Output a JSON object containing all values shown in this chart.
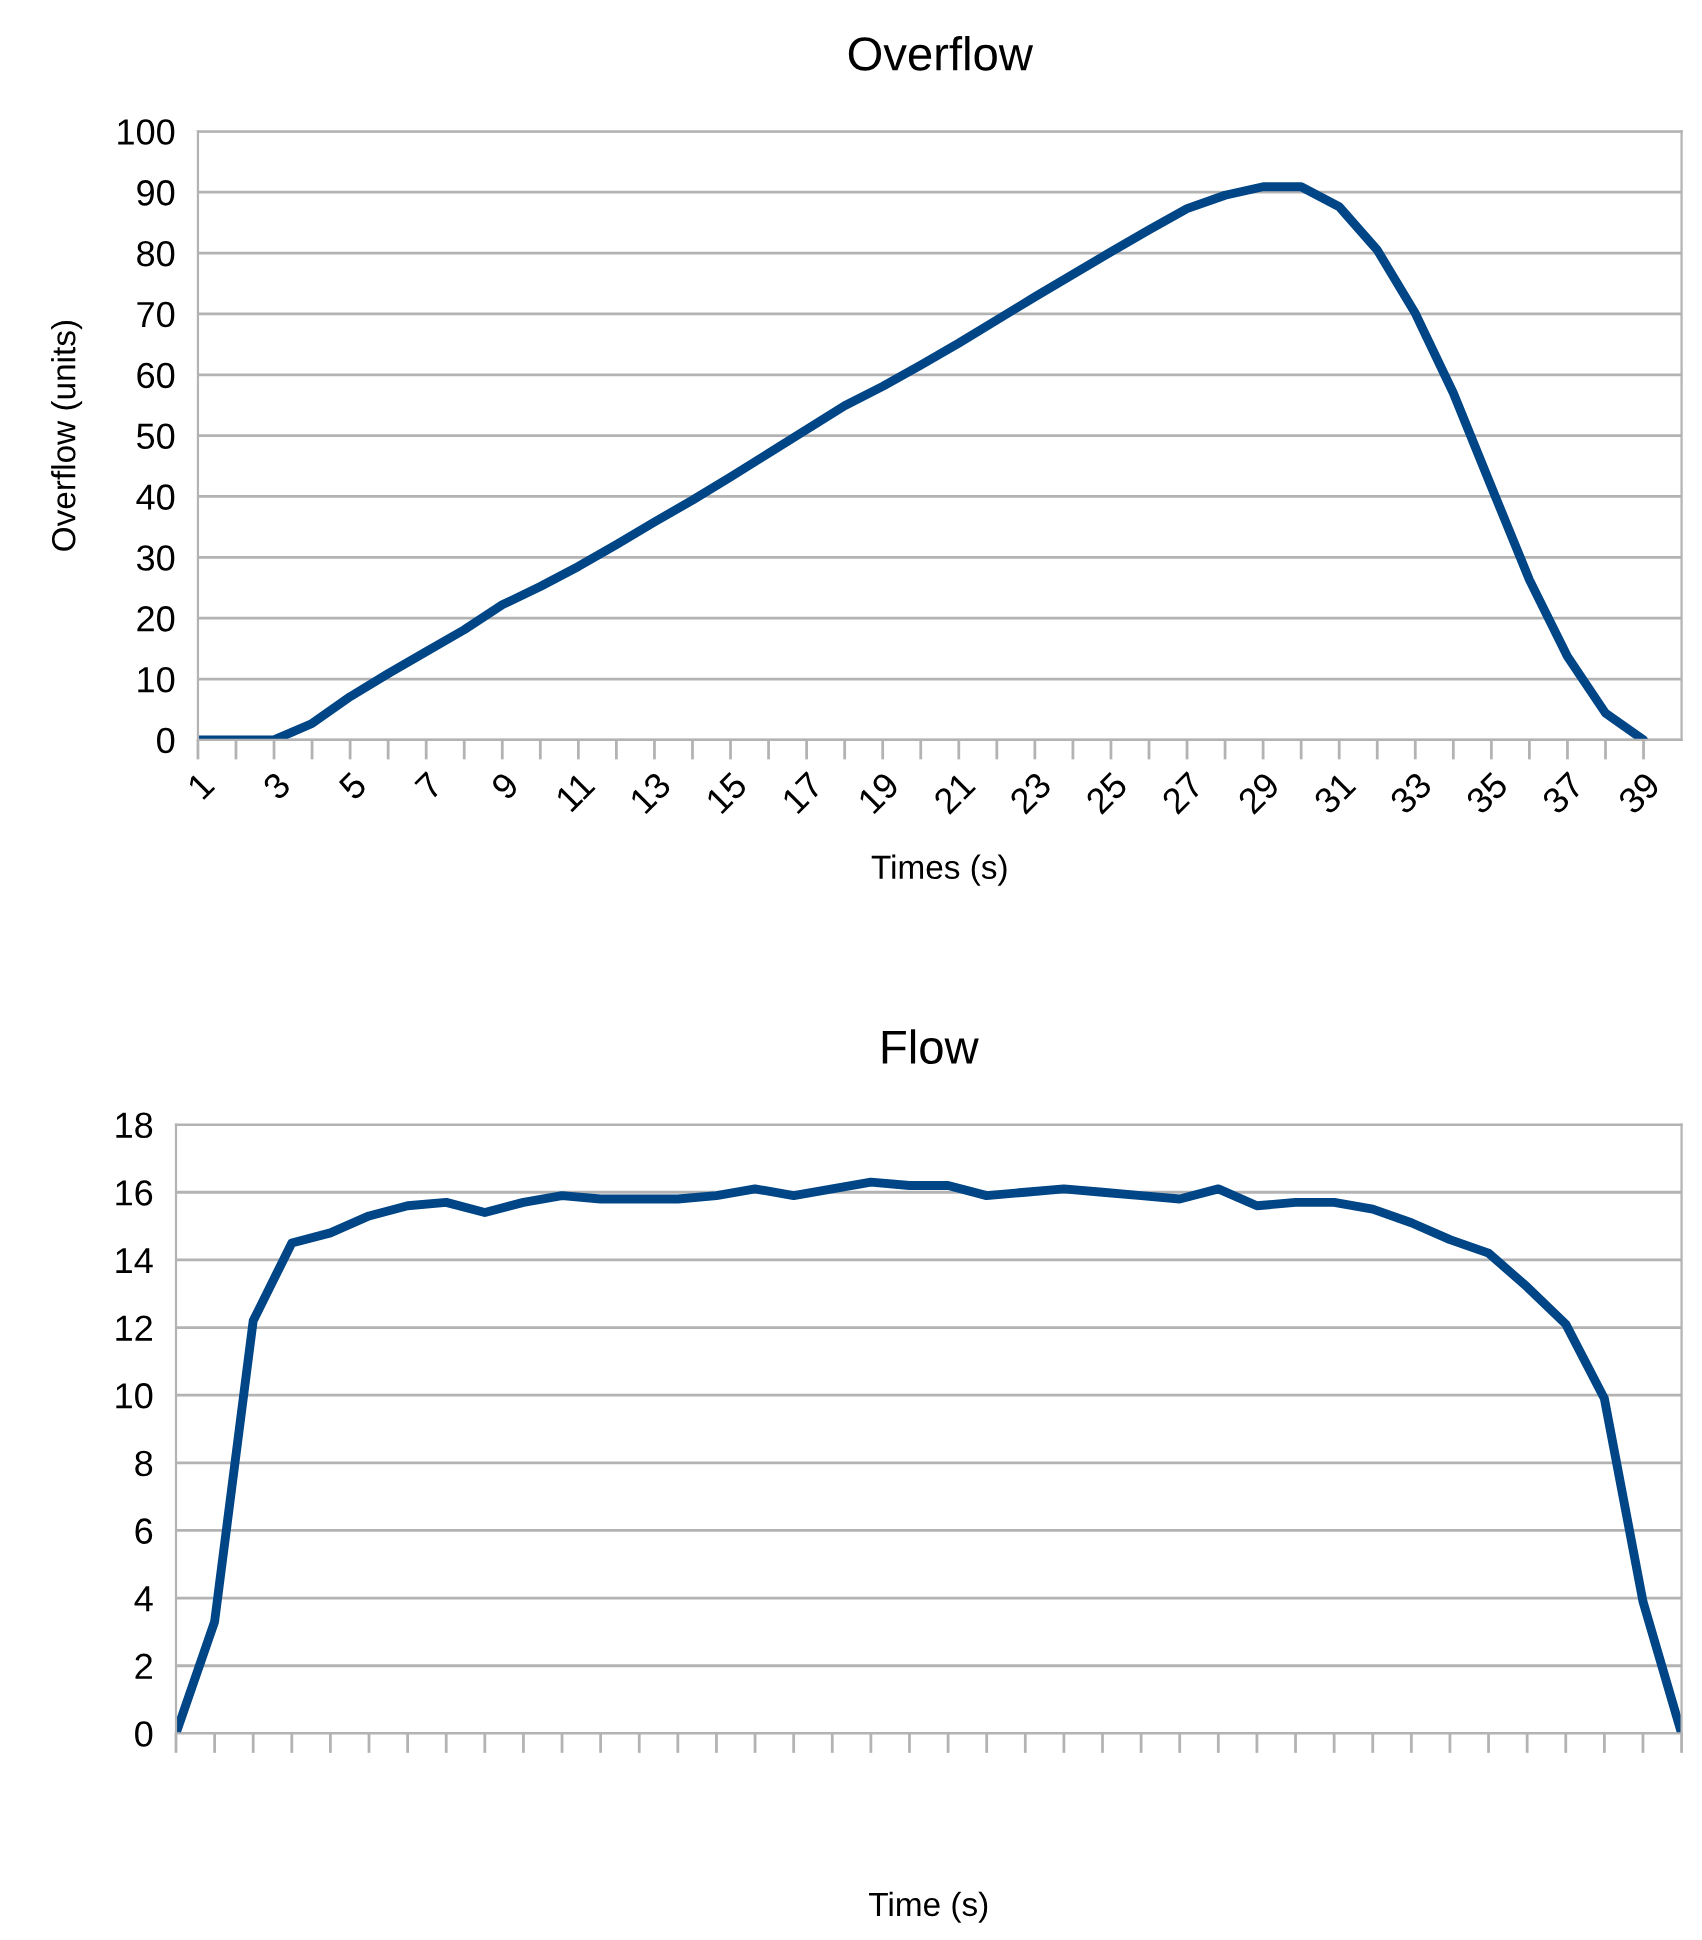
{
  "chart_data": [
    {
      "type": "line",
      "title": "Overflow",
      "xlabel": "Times (s)",
      "ylabel": "Overflow (units)",
      "categories": [
        "1",
        null,
        "3",
        null,
        "5",
        null,
        "7",
        null,
        "9",
        null,
        "11",
        null,
        "13",
        null,
        "15",
        null,
        "17",
        null,
        "19",
        null,
        "21",
        null,
        "23",
        null,
        "25",
        null,
        "27",
        null,
        "29",
        null,
        "31",
        null,
        "33",
        null,
        "35",
        null,
        "37",
        null,
        "39"
      ],
      "series": [
        {
          "color": "#004586",
          "values": [
            0,
            0,
            0,
            2.7,
            7.1,
            10.9,
            14.5,
            18.1,
            22.2,
            25.2,
            28.5,
            32.1,
            35.8,
            39.4,
            43.2,
            47.1,
            51.0,
            54.9,
            58.1,
            61.6,
            65.2,
            69.0,
            72.8,
            76.5,
            80.2,
            83.8,
            87.3,
            89.5,
            90.9,
            90.9,
            87.6,
            80.5,
            70.1,
            57.0,
            41.6,
            26.3,
            13.7,
            4.4,
            0
          ]
        }
      ],
      "ylim": [
        0,
        100
      ],
      "yticks": [
        0,
        10,
        20,
        30,
        40,
        50,
        60,
        70,
        80,
        90,
        100
      ],
      "grid": "y",
      "marker": "none",
      "line_style": "solid"
    },
    {
      "type": "line",
      "title": "Flow",
      "xlabel": "Time (s)",
      "categories": [
        null,
        null,
        null,
        null,
        null,
        null,
        null,
        null,
        null,
        null,
        null,
        null,
        null,
        null,
        null,
        null,
        null,
        null,
        null,
        null,
        null,
        null,
        null,
        null,
        null,
        null,
        null,
        null,
        null,
        null,
        null,
        null,
        null,
        null,
        null,
        null,
        null,
        null,
        null,
        null
      ],
      "series": [
        {
          "color": "#004586",
          "values": [
            0,
            3.3,
            12.2,
            14.5,
            14.8,
            15.3,
            15.6,
            15.7,
            15.4,
            15.7,
            15.9,
            15.8,
            15.8,
            15.8,
            15.9,
            16.1,
            15.9,
            16.1,
            16.3,
            16.2,
            16.2,
            15.9,
            16.0,
            16.1,
            16.0,
            15.9,
            15.8,
            16.1,
            15.6,
            15.7,
            15.7,
            15.5,
            15.1,
            14.6,
            14.2,
            13.2,
            12.1,
            9.9,
            3.9,
            0
          ]
        }
      ],
      "ylim": [
        0,
        18
      ],
      "yticks": [
        0,
        2,
        4,
        6,
        8,
        10,
        12,
        14,
        16,
        18
      ],
      "grid": "y",
      "marker": "none",
      "line_style": "solid",
      "tick_labels": "y"
    }
  ]
}
